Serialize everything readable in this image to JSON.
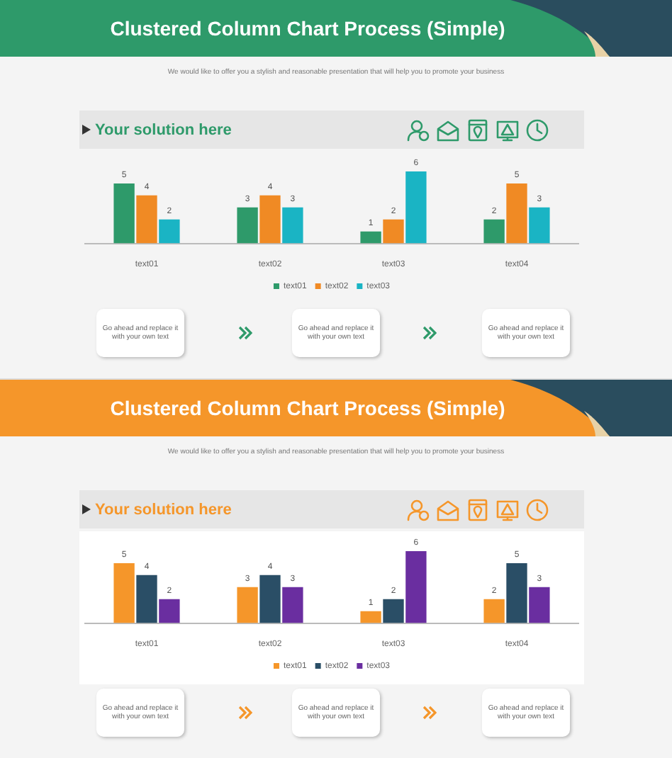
{
  "chart_data": [
    {
      "type": "bar",
      "title": "Clustered Column Chart Process (Simple)",
      "subtitle": "We would like to offer you a stylish and reasonable presentation that will help you to promote your business",
      "annotations": [
        "Your solution here",
        "Go ahead and replace it with your own text",
        "Go ahead and replace it with your own text",
        "Go ahead and replace it with your own text"
      ],
      "categories": [
        "text01",
        "text02",
        "text03",
        "text04"
      ],
      "series": [
        {
          "name": "text01",
          "color": "#2e9a6a",
          "values": [
            5,
            3,
            1,
            2
          ]
        },
        {
          "name": "text02",
          "color": "#f08a24",
          "values": [
            4,
            4,
            2,
            5
          ]
        },
        {
          "name": "text03",
          "color": "#1ab4c4",
          "values": [
            2,
            3,
            6,
            3
          ]
        }
      ],
      "data_labels": true,
      "legend": "bottom",
      "tick_labels": "x"
    },
    {
      "type": "bar",
      "title": "Clustered Column Chart Process (Simple)",
      "subtitle": "We would like to offer you a stylish and reasonable presentation that will help you to promote your business",
      "annotations": [
        "Your solution here",
        "Go ahead and replace it with your own text",
        "Go ahead and replace it with your own text",
        "Go ahead and replace it with your own text"
      ],
      "categories": [
        "text01",
        "text02",
        "text03",
        "text04"
      ],
      "series": [
        {
          "name": "text01",
          "color": "#f5962a",
          "values": [
            5,
            3,
            1,
            2
          ]
        },
        {
          "name": "text02",
          "color": "#2a4e66",
          "values": [
            4,
            4,
            2,
            5
          ]
        },
        {
          "name": "text03",
          "color": "#6a2ea0",
          "values": [
            2,
            3,
            6,
            3
          ]
        }
      ],
      "data_labels": true,
      "legend": "bottom",
      "tick_labels": "x"
    }
  ]
}
